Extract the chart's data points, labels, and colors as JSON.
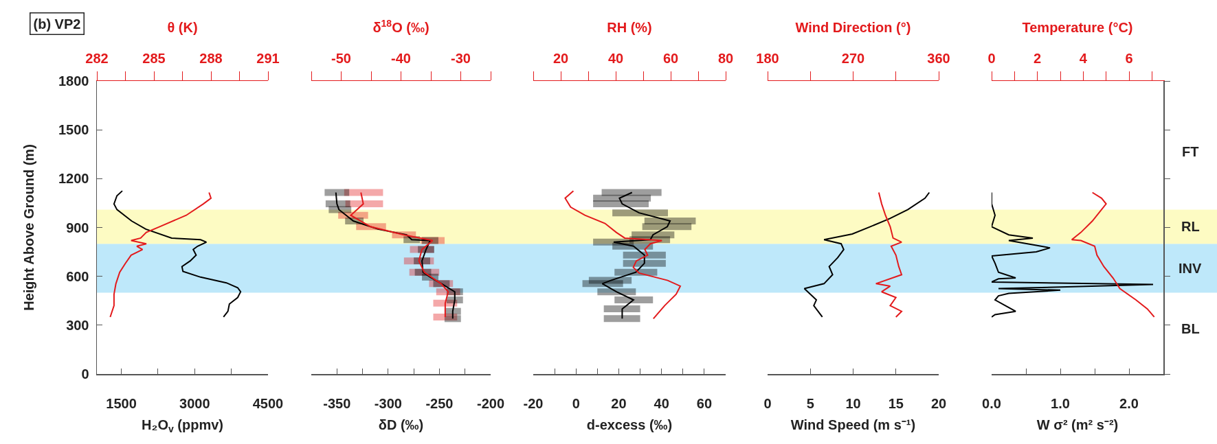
{
  "chart_data": [
    {
      "type": "line",
      "title": "(b) VP2",
      "xlabel": "H₂O$_{v}$ (ppmv)",
      "x2label": "θ (K)",
      "ylabel": "Height Above Ground (m)",
      "xlim": [
        1000,
        4500
      ],
      "xticks": [
        1500,
        {
          "value": 2250,
          "label": null
        },
        3000,
        {
          "value": 3750,
          "label": null
        },
        4500
      ],
      "x2lim": [
        282,
        291
      ],
      "x2ticks": [
        282,
        {
          "value": 283.5,
          "label": null
        },
        285,
        {
          "value": 286.5,
          "label": null
        },
        288,
        {
          "value": 289.5,
          "label": null
        },
        291
      ],
      "ylim": [
        0,
        1800
      ],
      "yticks": [
        0,
        300,
        600,
        900,
        1200,
        1500,
        1800
      ],
      "bands": [
        {
          "axis": "y",
          "from": 500,
          "to": 800,
          "color": "#bee8fa"
        },
        {
          "axis": "y",
          "from": 800,
          "to": 1010,
          "color": "#fdfbc3"
        }
      ],
      "series": [
        {
          "color": "#000000",
          "x": [
            1520,
            1410,
            1350,
            1410,
            1710,
            2000,
            2530,
            3120,
            3240,
            3060,
            2970,
            3030,
            2910,
            2740,
            2760,
            3120,
            3650,
            3880,
            3940,
            3880,
            3710,
            3680,
            3590
          ],
          "values": [
            1125,
            1095,
            1045,
            1010,
            940,
            890,
            835,
            825,
            810,
            785,
            765,
            730,
            695,
            660,
            630,
            595,
            560,
            530,
            505,
            470,
            430,
            385,
            350
          ]
        },
        {
          "color": "#e31a1c",
          "axis": "x2",
          "x": [
            287.9,
            288.0,
            287.6,
            286.7,
            285.3,
            284.6,
            284.3,
            283.8,
            284.6,
            284.1,
            284.4,
            283.8,
            283.5,
            283.2,
            283.0,
            282.9,
            282.9,
            282.7
          ],
          "values": [
            1115,
            1080,
            1045,
            975,
            905,
            870,
            835,
            820,
            800,
            785,
            765,
            730,
            680,
            625,
            555,
            490,
            420,
            350
          ]
        }
      ]
    },
    {
      "type": "line",
      "xlabel": "δD (‰)",
      "x2label": "δ$^{18}$O (‰)",
      "tick_labels": "x",
      "xlim": [
        -375,
        -200
      ],
      "xticks": [
        {
          "value": -375,
          "label": null
        },
        -350,
        {
          "value": -325,
          "label": null
        },
        -300,
        {
          "value": -275,
          "label": null
        },
        -250,
        {
          "value": -225,
          "label": null
        },
        -200
      ],
      "x2lim": [
        -55,
        -25
      ],
      "x2ticks": [
        {
          "value": -55,
          "label": null
        },
        -50,
        {
          "value": -45,
          "label": null
        },
        -40,
        {
          "value": -35,
          "label": null
        },
        -30,
        {
          "value": -25,
          "label": null
        }
      ],
      "ylim": [
        0,
        1800
      ],
      "bands": [
        {
          "axis": "y",
          "from": 500,
          "to": 800,
          "color": "#bee8fa"
        },
        {
          "axis": "y",
          "from": 800,
          "to": 1010,
          "color": "#fdfbc3"
        }
      ],
      "series": [
        {
          "color": "#000000",
          "x": [
            -351,
            -350,
            -348,
            -334,
            -310,
            -282,
            -277,
            -259,
            -263,
            -267,
            -266,
            -259,
            -248,
            -235,
            -235,
            -237,
            -237
          ],
          "values": [
            1115,
            1045,
            1010,
            940,
            890,
            855,
            825,
            820,
            765,
            695,
            625,
            595,
            555,
            505,
            455,
            385,
            340
          ],
          "xerrors": [
            [
              -362,
              -338
            ],
            [
              -361,
              -337
            ],
            [
              -358,
              -336
            ],
            [
              -342,
              -324
            ],
            null,
            null,
            [
              -285,
              -269
            ],
            [
              -267,
              -251
            ],
            [
              -271,
              -255
            ],
            [
              -275,
              -259
            ],
            [
              -274,
              -258
            ],
            [
              -267,
              -251
            ],
            [
              -256,
              -240
            ],
            [
              -243,
              -227
            ],
            [
              -243,
              -227
            ],
            [
              -245,
              -229
            ],
            [
              -245,
              -229
            ]
          ]
        },
        {
          "color": "#e31a1c",
          "axis": "x2",
          "x": [
            -46.7,
            -46.3,
            -48.4,
            -45.1,
            -39.5,
            -34.7,
            -36.5,
            -37.0,
            -36.1,
            -33.3,
            -32.1,
            -32.6,
            -32.6
          ],
          "values": [
            1115,
            1045,
            975,
            905,
            855,
            820,
            765,
            695,
            625,
            555,
            505,
            435,
            350
          ],
          "xerrors": [
            [
              -49.5,
              -43.0
            ],
            [
              -49.3,
              -43.0
            ],
            [
              -50.5,
              -45.5
            ],
            [
              -47.5,
              -42.5
            ],
            [
              -41.5,
              -37.5
            ],
            [
              -36.7,
              -32.7
            ],
            [
              -38.5,
              -34.5
            ],
            [
              -39.5,
              -34.5
            ],
            [
              -38.6,
              -33.6
            ],
            [
              -35.3,
              -31.3
            ],
            [
              -34.1,
              -30.1
            ],
            [
              -34.6,
              -30.6
            ],
            [
              -34.6,
              -30.6
            ]
          ]
        }
      ]
    },
    {
      "type": "line",
      "xlabel": "d-excess (‰)",
      "x2label": "RH (%)",
      "tick_labels": "x",
      "xlim": [
        -20,
        70
      ],
      "xticks": [
        -20,
        {
          "value": -10,
          "label": null
        },
        0,
        {
          "value": 10,
          "label": null
        },
        20,
        {
          "value": 30,
          "label": null
        },
        40,
        {
          "value": 50,
          "label": null
        },
        60,
        {
          "value": 70,
          "label": null
        }
      ],
      "x2lim": [
        10,
        80
      ],
      "x2ticks": [
        {
          "value": 10,
          "label": null
        },
        20,
        {
          "value": 30,
          "label": null
        },
        40,
        {
          "value": 50,
          "label": null
        },
        60,
        {
          "value": 70,
          "label": null
        },
        80
      ],
      "ylim": [
        0,
        1800
      ],
      "bands": [
        {
          "axis": "y",
          "from": 500,
          "to": 800,
          "color": "#bee8fa"
        },
        {
          "axis": "y",
          "from": 800,
          "to": 1010,
          "color": "#fdfbc3"
        }
      ],
      "series": [
        {
          "color": "#000000",
          "x": [
            26.2,
            20.3,
            21.6,
            29.5,
            44.0,
            42.7,
            36.0,
            34.8,
            17.6,
            26.9,
            32.0,
            32.0,
            28.0,
            16.3,
            12.3,
            18.9,
            26.9,
            21.6,
            21.6
          ],
          "values": [
            1115,
            1080,
            1045,
            990,
            940,
            905,
            855,
            825,
            810,
            785,
            730,
            680,
            625,
            575,
            555,
            505,
            455,
            400,
            340
          ],
          "xerrors": [
            [
              12,
              40
            ],
            [
              8,
              35
            ],
            [
              8,
              34
            ],
            [
              17,
              43
            ],
            [
              32,
              56
            ],
            [
              31,
              54
            ],
            [
              26,
              46
            ],
            [
              25,
              44
            ],
            [
              8,
              27
            ],
            [
              17,
              36
            ],
            [
              22,
              42
            ],
            [
              22,
              42
            ],
            [
              18,
              38
            ],
            [
              6,
              26
            ],
            [
              3,
              22
            ],
            [
              10,
              28
            ],
            [
              18,
              36
            ],
            [
              13,
              30
            ],
            [
              13,
              30
            ]
          ]
        },
        {
          "color": "#e31a1c",
          "axis": "x2",
          "x": [
            24.6,
            21.6,
            23.6,
            28.8,
            36.1,
            40.2,
            43.3,
            56.8,
            52.6,
            50.6,
            51.6,
            47.5,
            46.4,
            48.5,
            58.9,
            63.5,
            62.0,
            57.8,
            53.7
          ],
          "values": [
            1125,
            1080,
            1025,
            975,
            925,
            870,
            835,
            820,
            800,
            765,
            730,
            695,
            655,
            620,
            575,
            540,
            490,
            420,
            340
          ]
        }
      ]
    },
    {
      "type": "line",
      "xlabel": "Wind Speed (m s⁻¹)",
      "x2label": "Wind Direction (°)",
      "tick_labels": "x",
      "xlim": [
        0,
        20
      ],
      "xticks": [
        0,
        5,
        10,
        15,
        20
      ],
      "x2lim": [
        180,
        360
      ],
      "x2ticks": [
        180,
        {
          "value": 225,
          "label": null
        },
        270,
        {
          "value": 315,
          "label": null
        },
        360
      ],
      "ylim": [
        0,
        1800
      ],
      "bands": [
        {
          "axis": "y",
          "from": 500,
          "to": 800,
          "color": "#bee8fa"
        },
        {
          "axis": "y",
          "from": 800,
          "to": 1010,
          "color": "#fdfbc3"
        }
      ],
      "series": [
        {
          "color": "#000000",
          "x": [
            18.9,
            18.4,
            16.4,
            14.3,
            12.0,
            9.9,
            6.6,
            8.6,
            8.9,
            8.2,
            7.2,
            7.6,
            6.6,
            4.3,
            5.0,
            5.7,
            5.4,
            5.9,
            6.4
          ],
          "values": [
            1115,
            1080,
            1010,
            955,
            905,
            860,
            825,
            800,
            765,
            715,
            660,
            610,
            555,
            525,
            490,
            455,
            420,
            385,
            350
          ]
        },
        {
          "color": "#e31a1c",
          "axis": "x2",
          "x": [
            297,
            300,
            304,
            309,
            312,
            321,
            310,
            315,
            318,
            321,
            294,
            309,
            300,
            315,
            309,
            321,
            315
          ],
          "values": [
            1115,
            1045,
            975,
            905,
            835,
            810,
            785,
            730,
            660,
            610,
            555,
            540,
            505,
            470,
            420,
            385,
            350
          ]
        }
      ]
    },
    {
      "type": "line",
      "xlabel": "W σ² (m² s⁻²)",
      "x2label": "Temperature (°C)",
      "tick_labels": "x",
      "xlim": [
        0,
        2.5
      ],
      "xticks": [
        {
          "value": 0,
          "label": "0.0"
        },
        {
          "value": 0.5,
          "label": null
        },
        {
          "value": 1,
          "label": "1.0"
        },
        {
          "value": 1.5,
          "label": null
        },
        {
          "value": 2,
          "label": "2.0"
        }
      ],
      "x2lim": [
        0,
        7.5
      ],
      "x2ticks": [
        0,
        {
          "value": 1,
          "label": null
        },
        2,
        {
          "value": 3,
          "label": null
        },
        4,
        {
          "value": 5,
          "label": null
        },
        6,
        {
          "value": 7,
          "label": null
        }
      ],
      "ylim": [
        0,
        1800
      ],
      "bands": [
        {
          "axis": "y",
          "from": 500,
          "to": 800,
          "color": "#bee8fa",
          "label": "INV"
        },
        {
          "axis": "y",
          "from": 800,
          "to": 1010,
          "color": "#fdfbc3",
          "label": "RL"
        }
      ],
      "annotations": [
        "FT",
        "BL"
      ],
      "series": [
        {
          "color": "#000000",
          "x": [
            0,
            0,
            0.05,
            0,
            0.25,
            0.6,
            0.25,
            0.65,
            0.85,
            0.65,
            0,
            0.05,
            0.1,
            0.35,
            0.1,
            0,
            2.35,
            1.1,
            0.1,
            1.0,
            0.25,
            0.1,
            0.05,
            0.2,
            0.35,
            0.05,
            0
          ],
          "values": [
            1115,
            1045,
            975,
            905,
            855,
            835,
            820,
            790,
            775,
            750,
            725,
            680,
            625,
            590,
            585,
            565,
            550,
            535,
            525,
            515,
            495,
            480,
            455,
            420,
            385,
            365,
            350
          ]
        },
        {
          "color": "#e31a1c",
          "axis": "x2",
          "x": [
            4.4,
            4.8,
            5.0,
            4.8,
            4.4,
            3.9,
            3.5,
            3.9,
            4.5,
            4.6,
            4.9,
            5.3,
            5.6,
            6.3,
            6.8,
            7.1
          ],
          "values": [
            1115,
            1080,
            1045,
            1010,
            940,
            870,
            825,
            820,
            785,
            730,
            660,
            590,
            525,
            455,
            400,
            350
          ]
        }
      ]
    }
  ]
}
